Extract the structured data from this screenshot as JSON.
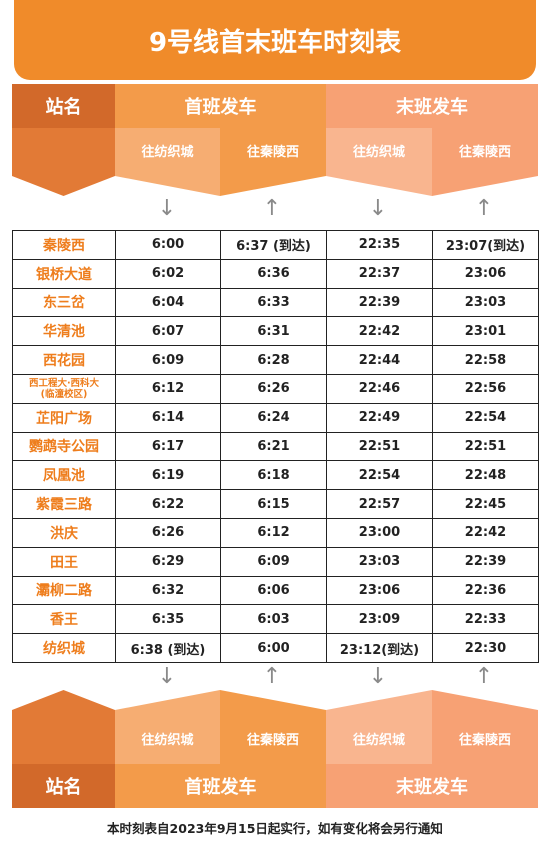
{
  "title": "9号线首末班车时刻表",
  "header": {
    "station_label": "站名",
    "first_train": "首班发车",
    "last_train": "末班发车",
    "dir_a": "往纺织城",
    "dir_b": "往秦陵西"
  },
  "arrows": {
    "dir_a": "↓",
    "dir_b": "↑"
  },
  "rows": [
    {
      "station": "秦陵西",
      "f_a": "6:00",
      "f_b": "6:37 (到达)",
      "l_a": "22:35",
      "l_b": "23:07(到达)"
    },
    {
      "station": "银桥大道",
      "f_a": "6:02",
      "f_b": "6:36",
      "l_a": "22:37",
      "l_b": "23:06"
    },
    {
      "station": "东三岔",
      "f_a": "6:04",
      "f_b": "6:33",
      "l_a": "22:39",
      "l_b": "23:03"
    },
    {
      "station": "华清池",
      "f_a": "6:07",
      "f_b": "6:31",
      "l_a": "22:42",
      "l_b": "23:01"
    },
    {
      "station": "西花园",
      "f_a": "6:09",
      "f_b": "6:28",
      "l_a": "22:44",
      "l_b": "22:58"
    },
    {
      "station": "西工程大·西科大",
      "station_sub": "(临潼校区)",
      "f_a": "6:12",
      "f_b": "6:26",
      "l_a": "22:46",
      "l_b": "22:56"
    },
    {
      "station": "芷阳广场",
      "f_a": "6:14",
      "f_b": "6:24",
      "l_a": "22:49",
      "l_b": "22:54"
    },
    {
      "station": "鹦鹉寺公园",
      "f_a": "6:17",
      "f_b": "6:21",
      "l_a": "22:51",
      "l_b": "22:51"
    },
    {
      "station": "凤凰池",
      "f_a": "6:19",
      "f_b": "6:18",
      "l_a": "22:54",
      "l_b": "22:48"
    },
    {
      "station": "紫霞三路",
      "f_a": "6:22",
      "f_b": "6:15",
      "l_a": "22:57",
      "l_b": "22:45"
    },
    {
      "station": "洪庆",
      "f_a": "6:26",
      "f_b": "6:12",
      "l_a": "23:00",
      "l_b": "22:42"
    },
    {
      "station": "田王",
      "f_a": "6:29",
      "f_b": "6:09",
      "l_a": "23:03",
      "l_b": "22:39"
    },
    {
      "station": "灞柳二路",
      "f_a": "6:32",
      "f_b": "6:06",
      "l_a": "23:06",
      "l_b": "22:36"
    },
    {
      "station": "香王",
      "f_a": "6:35",
      "f_b": "6:03",
      "l_a": "23:09",
      "l_b": "22:33"
    },
    {
      "station": "纺织城",
      "f_a": "6:38 (到达)",
      "f_b": "6:00",
      "l_a": "23:12(到达)",
      "l_b": "22:30"
    }
  ],
  "footer_note": "本时刻表自2023年9月15日起实行，如有变化将会另行通知",
  "colors": {
    "title_bg": "#f08b2a",
    "station_dark": "#d2692a",
    "station_mid": "#e27a36",
    "first_cap": "#f39b4a",
    "first_sub": "#f6ad72",
    "last_cap": "#f7a174",
    "last_sub": "#f9b58f",
    "station_text": "#ee7d1c"
  }
}
